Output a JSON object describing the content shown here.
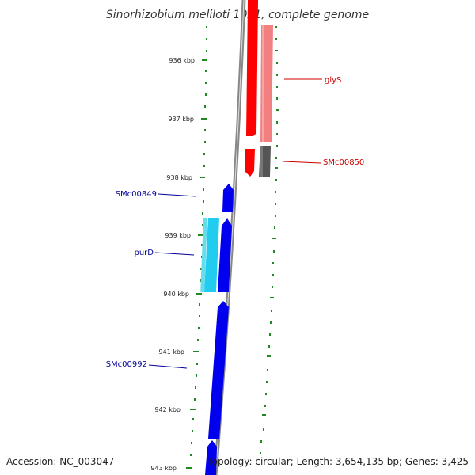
{
  "title": "Sinorhizobium meliloti 1021, complete genome",
  "footer": {
    "accession": "Accession: NC_003047",
    "summary": "Topology: circular; Length: 3,654,135 bp; Genes: 3,425"
  },
  "ticks": [
    "936 kbp",
    "937 kbp",
    "938 kbp",
    "939 kbp",
    "940 kbp",
    "941 kbp",
    "942 kbp",
    "943 kbp"
  ],
  "gene_labels": {
    "glyS": "glyS",
    "smc00850": "SMc00850",
    "smc00849": "SMc00849",
    "purD": "purD",
    "smc00992": "SMc00992"
  },
  "colors": {
    "forward_strand": "#0000ee",
    "forward_light": "#22ccee",
    "reverse_strand": "#ff0000",
    "reverse_light": "#f28080",
    "reverse_dark": "#555555",
    "backbone": "#888888",
    "gc_dots": "#228822"
  }
}
